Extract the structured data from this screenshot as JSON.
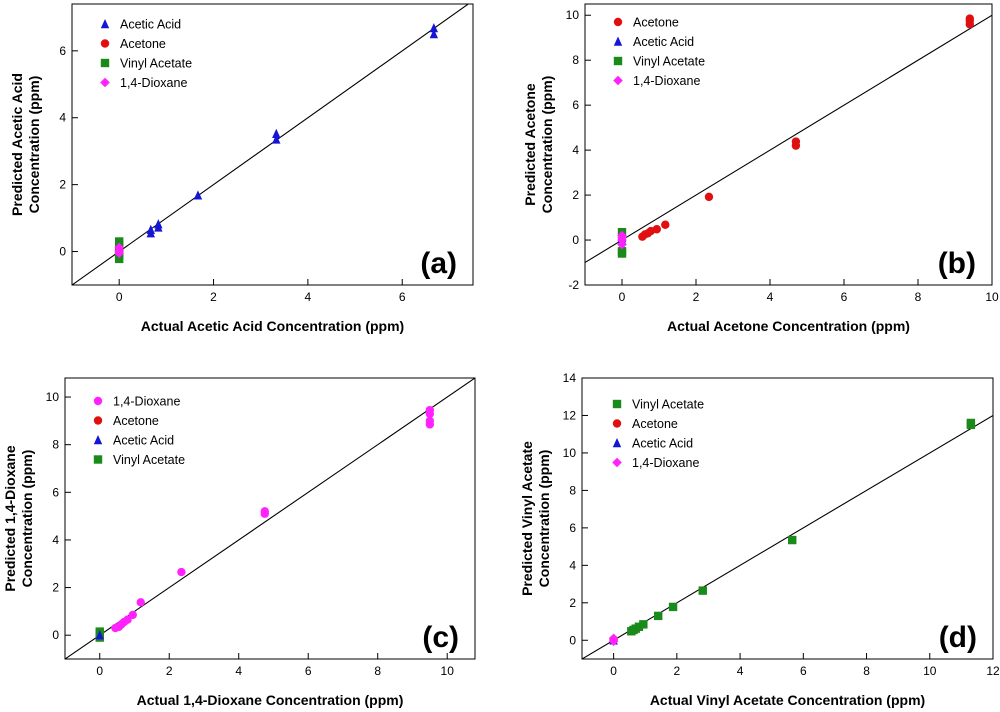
{
  "colors": {
    "acetic_acid": "#1515d6",
    "acetone": "#e01010",
    "vinyl_acetate": "#1a8a1a",
    "dioxane": "#ff22ff"
  },
  "chart_data": [
    {
      "type": "scatter",
      "panel_label": "(a)",
      "xlabel": "Actual Acetic Acid Concentration (ppm)",
      "ylabel_lines": [
        "Predicted Acetic Acid",
        "Concentration (ppm)"
      ],
      "xlim": [
        -1,
        7.5
      ],
      "ylim": [
        -1,
        7.4
      ],
      "xticks": [
        0,
        2,
        4,
        6
      ],
      "xtick_labels": [
        "0",
        "2",
        "4",
        "6"
      ],
      "yticks": [
        0,
        2,
        4,
        6
      ],
      "ytick_labels": [
        "0",
        "2",
        "4",
        "6"
      ],
      "identity_line": true,
      "legend": [
        {
          "label": "Acetic Acid",
          "marker": "triangle",
          "color_key": "acetic_acid"
        },
        {
          "label": "Acetone",
          "marker": "circle",
          "color_key": "acetone"
        },
        {
          "label": "Vinyl Acetate",
          "marker": "square",
          "color_key": "vinyl_acetate"
        },
        {
          "label": "1,4-Dioxane",
          "marker": "diamond",
          "color_key": "dioxane"
        }
      ],
      "series": [
        {
          "name": "Acetic Acid",
          "marker": "triangle",
          "color_key": "acetic_acid",
          "points": [
            [
              0,
              0.0
            ],
            [
              0.67,
              0.55
            ],
            [
              0.67,
              0.65
            ],
            [
              0.83,
              0.72
            ],
            [
              0.83,
              0.82
            ],
            [
              1.67,
              1.68
            ],
            [
              3.33,
              3.35
            ],
            [
              3.33,
              3.52
            ],
            [
              6.67,
              6.5
            ],
            [
              6.67,
              6.68
            ]
          ]
        },
        {
          "name": "Acetone",
          "marker": "circle",
          "color_key": "acetone",
          "points": [
            [
              0,
              0.05
            ],
            [
              0,
              0.1
            ]
          ]
        },
        {
          "name": "Vinyl Acetate",
          "marker": "square",
          "color_key": "vinyl_acetate",
          "points": [
            [
              0,
              0.3
            ],
            [
              0,
              0.2
            ],
            [
              0,
              -0.1
            ],
            [
              0,
              -0.22
            ]
          ]
        },
        {
          "name": "1,4-Dioxane",
          "marker": "diamond",
          "color_key": "dioxane",
          "points": [
            [
              0,
              0.12
            ],
            [
              0,
              0.02
            ],
            [
              0,
              -0.05
            ]
          ]
        }
      ]
    },
    {
      "type": "scatter",
      "panel_label": "(b)",
      "xlabel": "Actual Acetone Concentration (ppm)",
      "ylabel_lines": [
        "Predicted Acetone",
        "Concentration (ppm)"
      ],
      "xlim": [
        -1,
        10
      ],
      "ylim": [
        -2,
        10.5
      ],
      "xticks": [
        0,
        2,
        4,
        6,
        8,
        10
      ],
      "xtick_labels": [
        "0",
        "2",
        "4",
        "6",
        "8",
        "10"
      ],
      "yticks": [
        -2,
        0,
        2,
        4,
        6,
        8,
        10
      ],
      "ytick_labels": [
        "-2",
        "0",
        "2",
        "4",
        "6",
        "8",
        "10"
      ],
      "identity_line": true,
      "legend": [
        {
          "label": "Acetone",
          "marker": "circle",
          "color_key": "acetone"
        },
        {
          "label": "Acetic Acid",
          "marker": "triangle",
          "color_key": "acetic_acid"
        },
        {
          "label": "Vinyl Acetate",
          "marker": "square",
          "color_key": "vinyl_acetate"
        },
        {
          "label": "1,4-Dioxane",
          "marker": "diamond",
          "color_key": "dioxane"
        }
      ],
      "series": [
        {
          "name": "Acetic Acid",
          "marker": "triangle",
          "color_key": "acetic_acid",
          "points": [
            [
              0,
              0.1
            ],
            [
              0,
              0.0
            ]
          ]
        },
        {
          "name": "Vinyl Acetate",
          "marker": "square",
          "color_key": "vinyl_acetate",
          "points": [
            [
              0,
              0.35
            ],
            [
              0,
              -0.6
            ],
            [
              0,
              -0.5
            ]
          ]
        },
        {
          "name": "1,4-Dioxane",
          "marker": "diamond",
          "color_key": "dioxane",
          "points": [
            [
              0,
              0.2
            ],
            [
              0,
              0.0
            ],
            [
              0,
              -0.2
            ],
            [
              0,
              0.1
            ]
          ]
        },
        {
          "name": "Acetone",
          "marker": "circle",
          "color_key": "acetone",
          "points": [
            [
              0.55,
              0.15
            ],
            [
              0.62,
              0.25
            ],
            [
              0.7,
              0.3
            ],
            [
              0.78,
              0.4
            ],
            [
              0.94,
              0.48
            ],
            [
              1.17,
              0.68
            ],
            [
              2.35,
              1.92
            ],
            [
              4.7,
              4.2
            ],
            [
              4.7,
              4.38
            ],
            [
              9.4,
              9.6
            ],
            [
              9.4,
              9.75
            ],
            [
              9.4,
              9.85
            ]
          ]
        }
      ]
    },
    {
      "type": "scatter",
      "panel_label": "(c)",
      "xlabel": "Actual 1,4-Dioxane Concentration (ppm)",
      "ylabel_lines": [
        "Predicted 1,4-Dioxane",
        "Concentration (ppm)"
      ],
      "xlim": [
        -1,
        10.8
      ],
      "ylim": [
        -1,
        10.8
      ],
      "xticks": [
        0,
        2,
        4,
        6,
        8,
        10
      ],
      "xtick_labels": [
        "0",
        "2",
        "4",
        "6",
        "8",
        "10"
      ],
      "yticks": [
        0,
        2,
        4,
        6,
        8,
        10
      ],
      "ytick_labels": [
        "0",
        "2",
        "4",
        "6",
        "8",
        "10"
      ],
      "identity_line": true,
      "legend": [
        {
          "label": "1,4-Dioxane",
          "marker": "circle",
          "color_key": "dioxane"
        },
        {
          "label": "Acetone",
          "marker": "circle",
          "color_key": "acetone"
        },
        {
          "label": "Acetic Acid",
          "marker": "triangle",
          "color_key": "acetic_acid"
        },
        {
          "label": "Vinyl Acetate",
          "marker": "square",
          "color_key": "vinyl_acetate"
        }
      ],
      "series": [
        {
          "name": "Vinyl Acetate",
          "marker": "square",
          "color_key": "vinyl_acetate",
          "points": [
            [
              0,
              0.15
            ],
            [
              0,
              -0.1
            ],
            [
              0,
              0.05
            ]
          ]
        },
        {
          "name": "Acetic Acid",
          "marker": "triangle",
          "color_key": "acetic_acid",
          "points": [
            [
              0,
              0.0
            ]
          ]
        },
        {
          "name": "1,4-Dioxane",
          "marker": "circle",
          "color_key": "dioxane",
          "points": [
            [
              0.45,
              0.3
            ],
            [
              0.55,
              0.35
            ],
            [
              0.62,
              0.45
            ],
            [
              0.7,
              0.55
            ],
            [
              0.8,
              0.65
            ],
            [
              0.95,
              0.85
            ],
            [
              1.18,
              1.38
            ],
            [
              2.35,
              2.65
            ],
            [
              4.75,
              5.1
            ],
            [
              4.75,
              5.2
            ],
            [
              9.5,
              8.85
            ],
            [
              9.5,
              9.0
            ],
            [
              9.5,
              9.3
            ],
            [
              9.5,
              9.45
            ]
          ]
        }
      ]
    },
    {
      "type": "scatter",
      "panel_label": "(d)",
      "xlabel": "Actual Vinyl Acetate Concentration (ppm)",
      "ylabel_lines": [
        "Predicted Vinyl Acetate",
        "Concentration (ppm)"
      ],
      "xlim": [
        -1,
        12
      ],
      "ylim": [
        -1,
        14
      ],
      "xticks": [
        0,
        2,
        4,
        6,
        8,
        10,
        12
      ],
      "xtick_labels": [
        "0",
        "2",
        "4",
        "6",
        "8",
        "10",
        "12"
      ],
      "yticks": [
        0,
        2,
        4,
        6,
        8,
        10,
        12,
        14
      ],
      "ytick_labels": [
        "0",
        "2",
        "4",
        "6",
        "8",
        "10",
        "12",
        "14"
      ],
      "identity_line": true,
      "legend": [
        {
          "label": "Vinyl Acetate",
          "marker": "square",
          "color_key": "vinyl_acetate"
        },
        {
          "label": "Acetone",
          "marker": "circle",
          "color_key": "acetone"
        },
        {
          "label": "Acetic Acid",
          "marker": "triangle",
          "color_key": "acetic_acid"
        },
        {
          "label": "1,4-Dioxane",
          "marker": "diamond",
          "color_key": "dioxane"
        }
      ],
      "series": [
        {
          "name": "Acetone",
          "marker": "circle",
          "color_key": "acetone",
          "points": [
            [
              0,
              0.05
            ]
          ]
        },
        {
          "name": "Acetic Acid",
          "marker": "triangle",
          "color_key": "acetic_acid",
          "points": [
            [
              0,
              0.0
            ]
          ]
        },
        {
          "name": "1,4-Dioxane",
          "marker": "diamond",
          "color_key": "dioxane",
          "points": [
            [
              0,
              0.1
            ],
            [
              0,
              -0.05
            ]
          ]
        },
        {
          "name": "Vinyl Acetate",
          "marker": "square",
          "color_key": "vinyl_acetate",
          "points": [
            [
              0.56,
              0.48
            ],
            [
              0.63,
              0.55
            ],
            [
              0.7,
              0.62
            ],
            [
              0.8,
              0.72
            ],
            [
              0.94,
              0.85
            ],
            [
              1.41,
              1.3
            ],
            [
              1.88,
              1.78
            ],
            [
              2.82,
              2.65
            ],
            [
              5.65,
              5.35
            ],
            [
              11.3,
              11.5
            ],
            [
              11.3,
              11.6
            ]
          ]
        }
      ]
    }
  ]
}
